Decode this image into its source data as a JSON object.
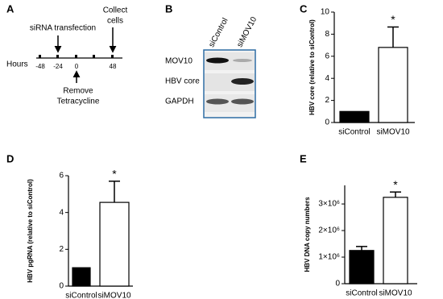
{
  "panel_a": {
    "letter": "A",
    "axis_label": "Hours",
    "ticks": [
      "-48",
      "-24",
      "0",
      "48"
    ],
    "top_label": "siRNA transfection",
    "collect_label": [
      "Collect",
      "cells"
    ],
    "bottom_label": [
      "Remove",
      "Tetracycline"
    ]
  },
  "panel_b": {
    "letter": "B",
    "lanes": [
      "siControl",
      "siMOV10"
    ],
    "rows": [
      "MOV10",
      "HBV core",
      "GAPDH"
    ]
  },
  "chart_data": [
    {
      "type": "bar",
      "panel_label": "C",
      "ylabel": "HBV core (relative to siControl)",
      "categories": [
        "siControl",
        "siMOV10"
      ],
      "values": [
        1,
        6.8
      ],
      "errors": [
        null,
        1.85
      ],
      "colors": [
        "#000000",
        "#ffffff"
      ],
      "annotation": "*",
      "ylim": [
        0,
        10
      ],
      "yticks": [
        0,
        2,
        4,
        6,
        8,
        10
      ]
    },
    {
      "type": "bar",
      "panel_label": "D",
      "ylabel": "HBV pgRNA (relative to siControl)",
      "categories": [
        "siControl",
        "siMOV10"
      ],
      "values": [
        1,
        4.55
      ],
      "errors": [
        null,
        1.15
      ],
      "colors": [
        "#000000",
        "#ffffff"
      ],
      "annotation": "*",
      "ylim": [
        0,
        6
      ],
      "yticks": [
        0,
        2,
        4,
        6
      ]
    },
    {
      "type": "bar",
      "panel_label": "E",
      "ylabel": "HBV DNA copy numbers",
      "categories": [
        "siControl",
        "siMOV10"
      ],
      "values": [
        1250000,
        3250000
      ],
      "errors": [
        150000,
        200000
      ],
      "colors": [
        "#000000",
        "#ffffff"
      ],
      "annotation": "*",
      "ylim": [
        0,
        3700000
      ],
      "yticks": [
        0,
        {
          "value": 1000000,
          "label": "1×10⁶"
        },
        {
          "value": 2000000,
          "label": "2×10⁶"
        },
        {
          "value": 3000000,
          "label": "3×10⁶"
        }
      ]
    }
  ]
}
